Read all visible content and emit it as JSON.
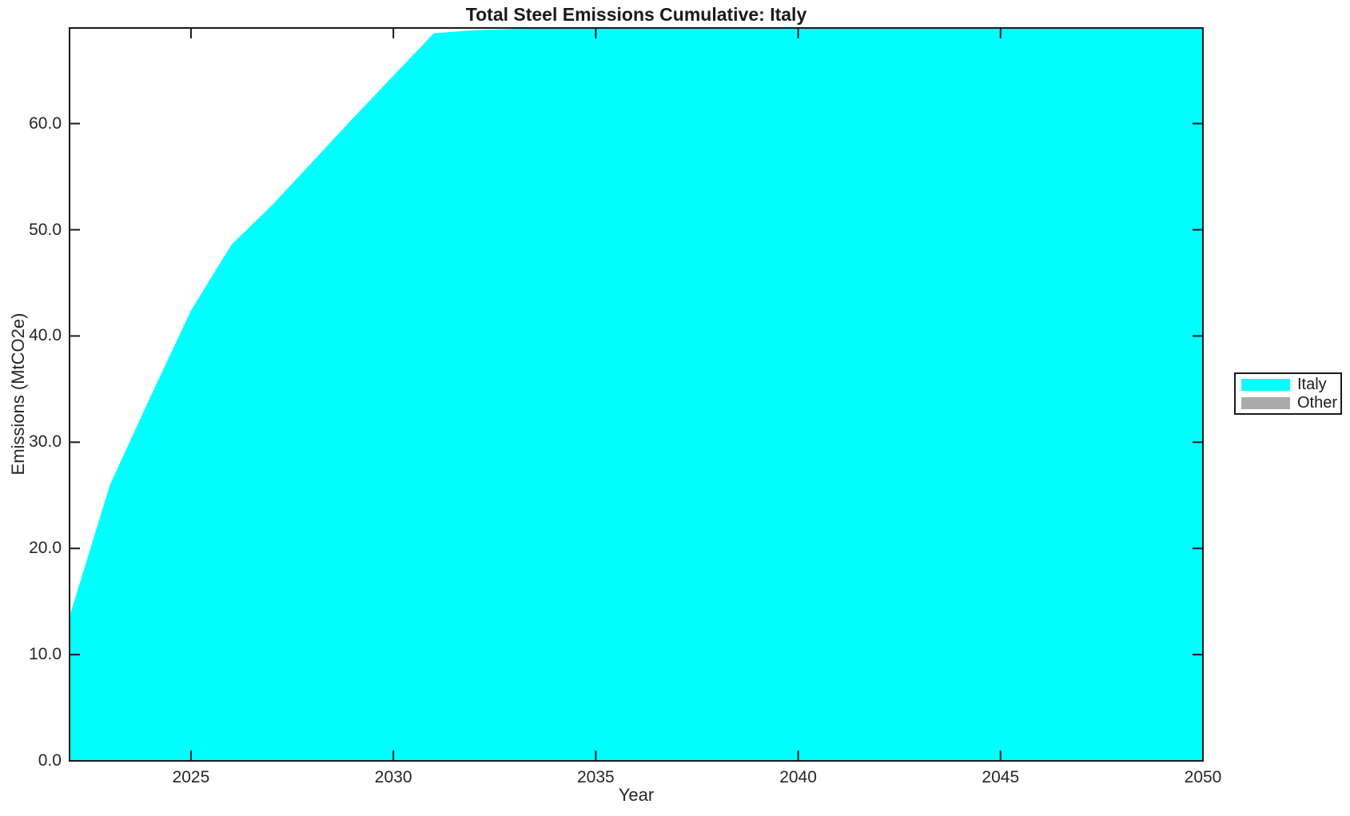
{
  "figure": {
    "background": "#ffffff",
    "axis_color": "#1a1a1a",
    "text_color": "#262626"
  },
  "chart_data": {
    "type": "area",
    "title": "Total Steel Emissions Cumulative: Italy",
    "xlabel": "Year",
    "ylabel": "Emissions (MtCO2e)",
    "xlim": [
      2022,
      2050
    ],
    "ylim": [
      0,
      69
    ],
    "grid": false,
    "legend_position": "outside-right",
    "x_tick_labels": [
      "2025",
      "2030",
      "2035",
      "2040",
      "2045",
      "2050"
    ],
    "x_tick_values": [
      2025,
      2030,
      2035,
      2040,
      2045,
      2050
    ],
    "y_tick_labels": [
      "0.0",
      "10.0",
      "20.0",
      "30.0",
      "40.0",
      "50.0",
      "60.0"
    ],
    "y_tick_values": [
      0,
      10,
      20,
      30,
      40,
      50,
      60
    ],
    "x": [
      2022,
      2023,
      2024,
      2025,
      2026,
      2027,
      2028,
      2029,
      2030,
      2031,
      2032,
      2033,
      2034,
      2035,
      2036,
      2037,
      2038,
      2039,
      2040,
      2041,
      2042,
      2043,
      2044,
      2045,
      2046,
      2047,
      2048,
      2049,
      2050
    ],
    "series": [
      {
        "name": "Italy",
        "color": "#00ffff",
        "values": [
          13.6,
          26.0,
          34.3,
          42.4,
          48.6,
          52.3,
          56.4,
          60.5,
          64.5,
          68.5,
          68.8,
          68.9,
          68.95,
          68.97,
          69.0,
          69.0,
          69.0,
          69.0,
          69.0,
          69.0,
          69.0,
          69.0,
          69.0,
          69.0,
          69.0,
          69.0,
          69.0,
          69.0,
          69.0
        ]
      }
    ],
    "legend": [
      {
        "label": "Italy",
        "color": "#00ffff"
      },
      {
        "label": "Other",
        "color": "#ababab"
      }
    ]
  }
}
